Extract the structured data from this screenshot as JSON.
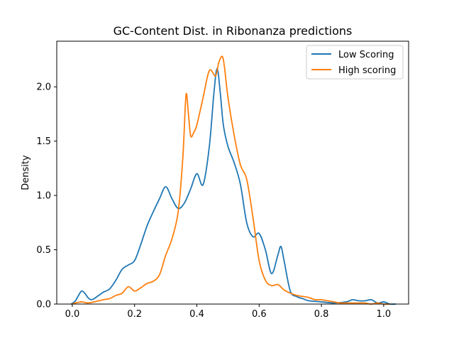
{
  "chart_data": {
    "type": "line",
    "title": "GC-Content Dist. in Ribonanza predictions",
    "xlabel": "",
    "ylabel": "Density",
    "xlim": [
      -0.05,
      1.08
    ],
    "ylim": [
      0,
      2.42
    ],
    "xticks": [
      "0.0",
      "0.2",
      "0.4",
      "0.6",
      "0.8",
      "1.0"
    ],
    "yticks": [
      "0.0",
      "0.5",
      "1.0",
      "1.5",
      "2.0"
    ],
    "grid": false,
    "legend_position": "upper right",
    "series": [
      {
        "name": "Low Scoring",
        "color": "#1f77b4",
        "x": [
          -0.003,
          0.01,
          0.02,
          0.03,
          0.04,
          0.05,
          0.06,
          0.07,
          0.08,
          0.09,
          0.1,
          0.12,
          0.14,
          0.16,
          0.18,
          0.2,
          0.22,
          0.24,
          0.26,
          0.28,
          0.3,
          0.32,
          0.34,
          0.36,
          0.38,
          0.4,
          0.42,
          0.44,
          0.455,
          0.465,
          0.475,
          0.485,
          0.5,
          0.52,
          0.54,
          0.56,
          0.58,
          0.6,
          0.62,
          0.64,
          0.66,
          0.67,
          0.68,
          0.7,
          0.72,
          0.74,
          0.76,
          0.8,
          0.84,
          0.88,
          0.9,
          0.92,
          0.94,
          0.96,
          0.98,
          1.0,
          1.02,
          1.038
        ],
        "y": [
          0.0,
          0.03,
          0.08,
          0.12,
          0.1,
          0.06,
          0.04,
          0.05,
          0.07,
          0.09,
          0.11,
          0.14,
          0.22,
          0.32,
          0.36,
          0.4,
          0.55,
          0.72,
          0.85,
          0.97,
          1.08,
          0.97,
          0.88,
          0.93,
          1.06,
          1.2,
          1.1,
          1.45,
          1.95,
          2.17,
          1.95,
          1.65,
          1.45,
          1.3,
          1.1,
          0.75,
          0.62,
          0.65,
          0.5,
          0.28,
          0.45,
          0.53,
          0.4,
          0.12,
          0.07,
          0.05,
          0.03,
          0.02,
          0.01,
          0.02,
          0.04,
          0.03,
          0.03,
          0.04,
          0.01,
          0.02,
          0.0,
          0.0
        ]
      },
      {
        "name": "High scoring",
        "color": "#ff7f0e",
        "x": [
          0.0,
          0.01,
          0.03,
          0.05,
          0.07,
          0.1,
          0.12,
          0.14,
          0.16,
          0.18,
          0.2,
          0.22,
          0.24,
          0.26,
          0.28,
          0.3,
          0.32,
          0.34,
          0.355,
          0.365,
          0.372,
          0.38,
          0.39,
          0.4,
          0.42,
          0.44,
          0.46,
          0.47,
          0.48,
          0.485,
          0.49,
          0.5,
          0.52,
          0.54,
          0.56,
          0.58,
          0.6,
          0.62,
          0.64,
          0.66,
          0.68,
          0.7,
          0.72,
          0.74,
          0.76,
          0.78,
          0.8,
          0.82,
          0.84,
          0.86,
          0.88,
          0.9,
          0.92,
          0.94,
          0.96,
          0.98,
          1.0,
          1.02
        ],
        "y": [
          0.0,
          0.01,
          0.02,
          0.01,
          0.02,
          0.04,
          0.05,
          0.08,
          0.1,
          0.16,
          0.12,
          0.15,
          0.19,
          0.21,
          0.27,
          0.45,
          0.6,
          0.85,
          1.35,
          1.92,
          1.78,
          1.55,
          1.58,
          1.65,
          1.9,
          2.15,
          2.1,
          2.22,
          2.28,
          2.25,
          2.15,
          1.9,
          1.55,
          1.28,
          1.15,
          0.8,
          0.4,
          0.22,
          0.17,
          0.18,
          0.13,
          0.1,
          0.08,
          0.07,
          0.06,
          0.04,
          0.04,
          0.03,
          0.02,
          0.01,
          0.01,
          0.01,
          0.01,
          0.01,
          0.0,
          0.01,
          0.0,
          0.0
        ]
      }
    ]
  }
}
